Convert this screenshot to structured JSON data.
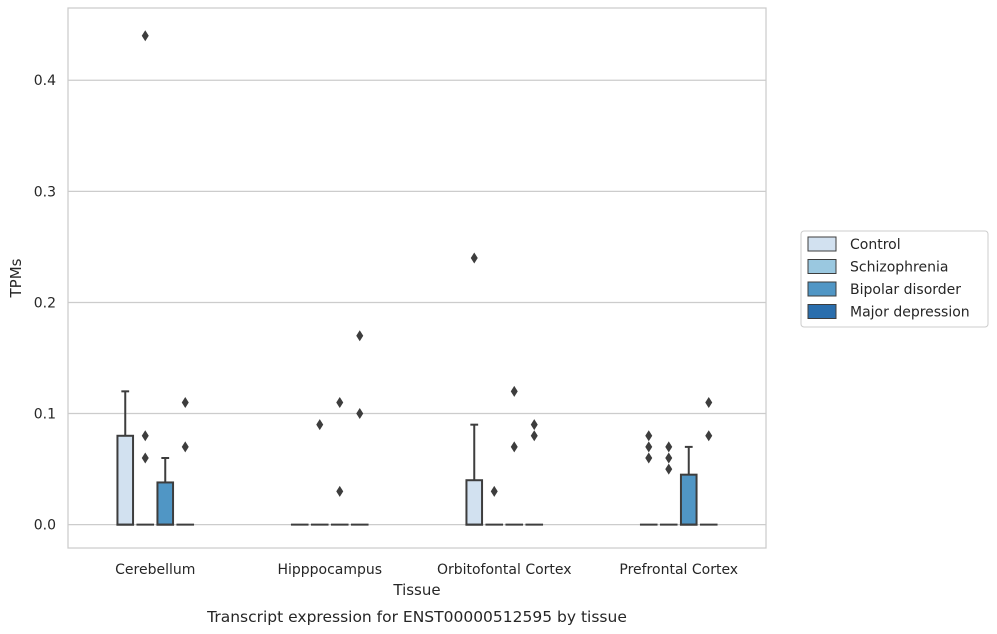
{
  "chart_data": {
    "type": "box",
    "title": "Transcript expression for ENST00000512595 by tissue",
    "xlabel": "Tissue",
    "ylabel": "TPMs",
    "ylim": [
      -0.021,
      0.465
    ],
    "yticks": [
      0.0,
      0.1,
      0.2,
      0.3,
      0.4
    ],
    "ytick_labels": [
      "0.0",
      "0.1",
      "0.2",
      "0.3",
      "0.4"
    ],
    "grid": true,
    "legend_position": "right",
    "categories": [
      "Cerebellum",
      "Hipppocampus",
      "Orbitofontal Cortex",
      "Prefrontal Cortex"
    ],
    "series": [
      {
        "name": "Control",
        "color": "#d2e1f0",
        "boxes": [
          {
            "q1": 0.0,
            "median": 0.0,
            "q3": 0.08,
            "whisker_low": 0.0,
            "whisker_high": 0.12,
            "outliers": []
          },
          {
            "q1": 0.0,
            "median": 0.0,
            "q3": 0.0,
            "whisker_low": 0.0,
            "whisker_high": 0.0,
            "outliers": []
          },
          {
            "q1": 0.0,
            "median": 0.0,
            "q3": 0.04,
            "whisker_low": 0.0,
            "whisker_high": 0.09,
            "outliers": [
              0.24
            ]
          },
          {
            "q1": 0.0,
            "median": 0.0,
            "q3": 0.0,
            "whisker_low": 0.0,
            "whisker_high": 0.0,
            "outliers": [
              0.06,
              0.07,
              0.08
            ]
          }
        ]
      },
      {
        "name": "Schizophrenia",
        "color": "#9ac8e0",
        "boxes": [
          {
            "q1": 0.0,
            "median": 0.0,
            "q3": 0.0,
            "whisker_low": 0.0,
            "whisker_high": 0.0,
            "outliers": [
              0.06,
              0.08,
              0.44
            ]
          },
          {
            "q1": 0.0,
            "median": 0.0,
            "q3": 0.0,
            "whisker_low": 0.0,
            "whisker_high": 0.0,
            "outliers": [
              0.09
            ]
          },
          {
            "q1": 0.0,
            "median": 0.0,
            "q3": 0.0,
            "whisker_low": 0.0,
            "whisker_high": 0.0,
            "outliers": [
              0.03
            ]
          },
          {
            "q1": 0.0,
            "median": 0.0,
            "q3": 0.0,
            "whisker_low": 0.0,
            "whisker_high": 0.0,
            "outliers": [
              0.05,
              0.06,
              0.07
            ]
          }
        ]
      },
      {
        "name": "Bipolar disorder",
        "color": "#5096c5",
        "boxes": [
          {
            "q1": 0.0,
            "median": 0.0,
            "q3": 0.038,
            "whisker_low": 0.0,
            "whisker_high": 0.06,
            "outliers": []
          },
          {
            "q1": 0.0,
            "median": 0.0,
            "q3": 0.0,
            "whisker_low": 0.0,
            "whisker_high": 0.0,
            "outliers": [
              0.03,
              0.11
            ]
          },
          {
            "q1": 0.0,
            "median": 0.0,
            "q3": 0.0,
            "whisker_low": 0.0,
            "whisker_high": 0.0,
            "outliers": [
              0.07,
              0.12
            ]
          },
          {
            "q1": 0.0,
            "median": 0.0,
            "q3": 0.045,
            "whisker_low": 0.0,
            "whisker_high": 0.07,
            "outliers": []
          }
        ]
      },
      {
        "name": "Major depression",
        "color": "#2a6ead",
        "boxes": [
          {
            "q1": 0.0,
            "median": 0.0,
            "q3": 0.0,
            "whisker_low": 0.0,
            "whisker_high": 0.0,
            "outliers": [
              0.07,
              0.11
            ]
          },
          {
            "q1": 0.0,
            "median": 0.0,
            "q3": 0.0,
            "whisker_low": 0.0,
            "whisker_high": 0.0,
            "outliers": [
              0.1,
              0.17
            ]
          },
          {
            "q1": 0.0,
            "median": 0.0,
            "q3": 0.0,
            "whisker_low": 0.0,
            "whisker_high": 0.0,
            "outliers": [
              0.08,
              0.09
            ]
          },
          {
            "q1": 0.0,
            "median": 0.0,
            "q3": 0.0,
            "whisker_low": 0.0,
            "whisker_high": 0.0,
            "outliers": [
              0.08,
              0.11
            ]
          }
        ]
      }
    ]
  }
}
